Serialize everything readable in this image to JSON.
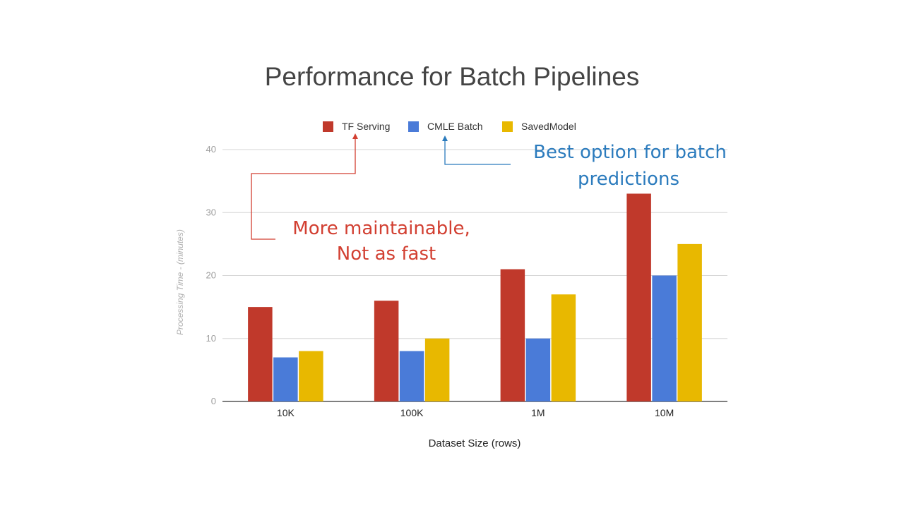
{
  "chart_data": {
    "type": "bar",
    "title": "Performance for Batch Pipelines",
    "xlabel": "Dataset Size (rows)",
    "ylabel": "Processing Time - (minutes)",
    "categories": [
      "10K",
      "100K",
      "1M",
      "10M"
    ],
    "series": [
      {
        "name": "TF Serving",
        "color": "#c0392b",
        "values": [
          15,
          16,
          21,
          33
        ]
      },
      {
        "name": "CMLE Batch",
        "color": "#4a7bd8",
        "values": [
          7,
          8,
          10,
          20
        ]
      },
      {
        "name": "SavedModel",
        "color": "#e8b800",
        "values": [
          8,
          10,
          17,
          25
        ]
      }
    ],
    "ylim": [
      0,
      40
    ],
    "yticks": [
      0,
      10,
      20,
      30,
      40
    ],
    "grid": true,
    "legend_position": "top"
  },
  "annotations": {
    "tf_serving_note": {
      "lines": [
        "More maintainable,",
        "Not as fast"
      ],
      "color": "#d23f31"
    },
    "cmle_note": {
      "lines": [
        "Best option for batch",
        "predictions"
      ],
      "color": "#2b7bbd"
    }
  }
}
